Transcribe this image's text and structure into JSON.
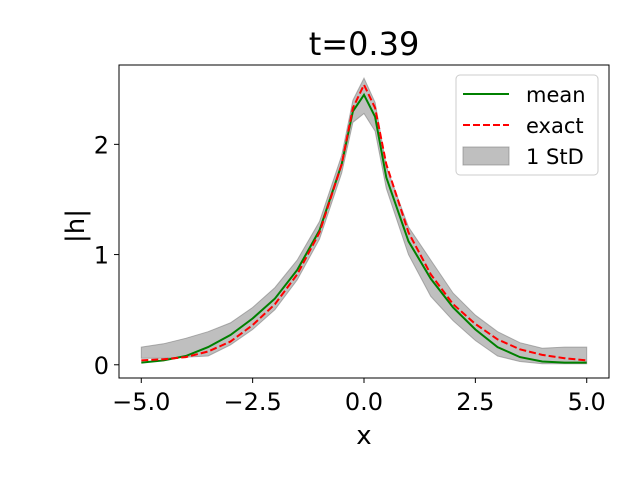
{
  "chart_data": {
    "type": "line",
    "title": "t=0.39",
    "xlabel": "x",
    "ylabel": "|h|",
    "xlim": [
      -5.5,
      5.5
    ],
    "ylim": [
      -0.12,
      2.72
    ],
    "xticks": [
      -5.0,
      -2.5,
      0.0,
      2.5,
      5.0
    ],
    "xtick_labels": [
      "−5.0",
      "−2.5",
      "0.0",
      "2.5",
      "5.0"
    ],
    "yticks": [
      0,
      1,
      2
    ],
    "ytick_labels": [
      "0",
      "1",
      "2"
    ],
    "grid": false,
    "legend_position": "top-right",
    "legend": [
      "mean",
      "exact",
      "1 StD"
    ],
    "x": [
      -5.0,
      -4.5,
      -4.0,
      -3.5,
      -3.0,
      -2.5,
      -2.0,
      -1.5,
      -1.0,
      -0.5,
      -0.25,
      0.0,
      0.25,
      0.5,
      1.0,
      1.5,
      2.0,
      2.5,
      3.0,
      3.5,
      4.0,
      4.5,
      5.0
    ],
    "series": [
      {
        "name": "mean",
        "color": "#008000",
        "style": "solid",
        "values": [
          0.02,
          0.04,
          0.08,
          0.16,
          0.27,
          0.42,
          0.6,
          0.86,
          1.22,
          1.82,
          2.3,
          2.45,
          2.25,
          1.7,
          1.12,
          0.78,
          0.52,
          0.32,
          0.16,
          0.07,
          0.03,
          0.02,
          0.02
        ]
      },
      {
        "name": "exact",
        "color": "#ff0000",
        "style": "dashed",
        "values": [
          0.04,
          0.05,
          0.07,
          0.12,
          0.21,
          0.36,
          0.55,
          0.82,
          1.2,
          1.82,
          2.33,
          2.54,
          2.33,
          1.82,
          1.2,
          0.82,
          0.55,
          0.37,
          0.23,
          0.14,
          0.09,
          0.06,
          0.04
        ]
      }
    ],
    "band": {
      "name": "1 StD",
      "color": "#808080",
      "upper": [
        0.16,
        0.19,
        0.24,
        0.3,
        0.38,
        0.52,
        0.7,
        0.95,
        1.3,
        1.9,
        2.4,
        2.6,
        2.38,
        1.8,
        1.25,
        0.95,
        0.65,
        0.45,
        0.3,
        0.2,
        0.15,
        0.16,
        0.16
      ],
      "lower": [
        0.06,
        0.06,
        0.07,
        0.08,
        0.18,
        0.32,
        0.5,
        0.77,
        1.14,
        1.74,
        2.2,
        2.28,
        2.12,
        1.6,
        1.0,
        0.62,
        0.4,
        0.22,
        0.08,
        0.03,
        0.01,
        0.01,
        0.01
      ]
    }
  }
}
